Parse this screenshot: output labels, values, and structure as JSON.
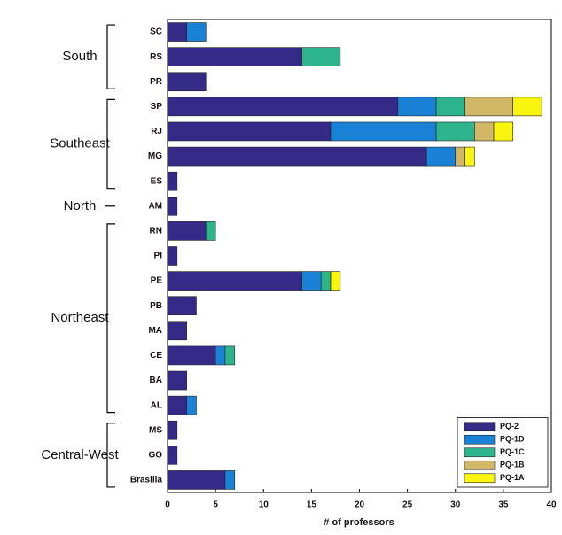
{
  "chart_data": {
    "type": "stacked_barh",
    "xlabel": "# of professors",
    "categories": [
      "SC",
      "RS",
      "PR",
      "SP",
      "RJ",
      "MG",
      "ES",
      "AM",
      "RN",
      "PI",
      "PE",
      "PB",
      "MA",
      "CE",
      "BA",
      "AL",
      "MS",
      "GO",
      "Brasilia"
    ],
    "series": [
      {
        "name": "PQ-2",
        "color": "#352a87",
        "values": [
          2,
          14,
          4,
          24,
          17,
          27,
          1,
          1,
          4,
          1,
          14,
          3,
          2,
          5,
          2,
          2,
          1,
          1,
          6
        ]
      },
      {
        "name": "PQ-1D",
        "color": "#1a82d6",
        "values": [
          2,
          0,
          0,
          4,
          11,
          3,
          0,
          0,
          0,
          0,
          2,
          0,
          0,
          1,
          0,
          1,
          0,
          0,
          1
        ]
      },
      {
        "name": "PQ-1C",
        "color": "#2eb48c",
        "values": [
          0,
          4,
          0,
          3,
          4,
          0,
          0,
          0,
          1,
          0,
          1,
          0,
          0,
          1,
          0,
          0,
          0,
          0,
          0
        ]
      },
      {
        "name": "PQ-1B",
        "color": "#d2b866",
        "values": [
          0,
          0,
          0,
          5,
          2,
          1,
          0,
          0,
          0,
          0,
          0,
          0,
          0,
          0,
          0,
          0,
          0,
          0,
          0
        ]
      },
      {
        "name": "PQ-1A",
        "color": "#f9f50f",
        "values": [
          0,
          0,
          0,
          3,
          2,
          1,
          0,
          0,
          0,
          0,
          1,
          0,
          0,
          0,
          0,
          0,
          0,
          0,
          0
        ]
      }
    ],
    "groups": [
      {
        "name": "South",
        "members": [
          "SC",
          "RS",
          "PR"
        ]
      },
      {
        "name": "Southeast",
        "members": [
          "SP",
          "RJ",
          "MG",
          "ES"
        ]
      },
      {
        "name": "North",
        "members": [
          "AM"
        ]
      },
      {
        "name": "Northeast",
        "members": [
          "RN",
          "PI",
          "PE",
          "PB",
          "MA",
          "CE",
          "BA",
          "AL"
        ]
      },
      {
        "name": "Central-West",
        "members": [
          "MS",
          "GO",
          "Brasilia"
        ]
      }
    ],
    "xlim": [
      0,
      40
    ],
    "xticks": [
      0,
      5,
      10,
      15,
      20,
      25,
      30,
      35,
      40
    ],
    "legend": "lower right"
  }
}
